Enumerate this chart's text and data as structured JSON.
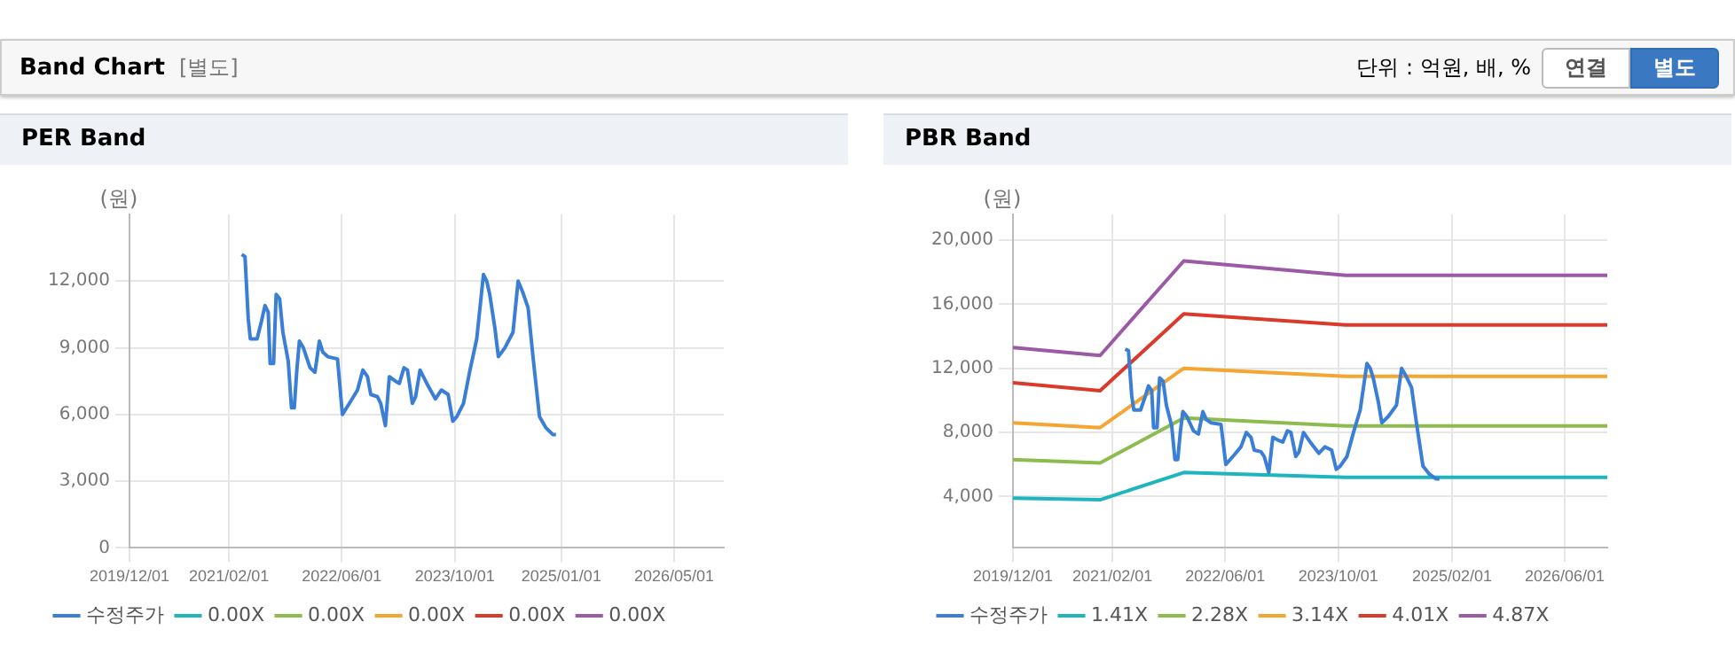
{
  "chart_data": [
    {
      "type": "line",
      "title": "PER Band",
      "ylabel": "(원)",
      "annotations": [
        "Band Chart",
        "[별도]",
        "단위 : 억원, 배, %",
        "연결",
        "별도"
      ],
      "xlim": [
        "2019-12-01",
        "2026-12-01"
      ],
      "xticks": [
        {
          "value": "2019-12-01",
          "label": "2019/12/01"
        },
        {
          "value": "2021-02-01",
          "label": "2021/02/01"
        },
        {
          "value": "2022-06-01",
          "label": "2022/06/01"
        },
        {
          "value": "2023-10-01",
          "label": "2023/10/01"
        },
        {
          "value": "2025-01-01",
          "label": "2025/01/01"
        },
        {
          "value": "2026-05-01",
          "label": "2026/05/01"
        }
      ],
      "ylim": [
        0,
        15000
      ],
      "yticks": [
        {
          "value": 0,
          "label": "0"
        },
        {
          "value": 3000,
          "label": "3,000"
        },
        {
          "value": 6000,
          "label": "6,000"
        },
        {
          "value": 9000,
          "label": "9,000"
        },
        {
          "value": 12000,
          "label": "12,000"
        }
      ],
      "grid": true,
      "legend": "bottom",
      "marker": "none",
      "series": [
        {
          "name": "수정주가",
          "color": "#3a7fd5",
          "x": [
            "2021-03-28",
            "2021-04-11",
            "2021-04-25",
            "2021-05-04",
            "2021-06-02",
            "2021-06-21",
            "2021-07-06",
            "2021-07-20",
            "2021-07-28",
            "2021-08-12",
            "2021-08-23",
            "2021-09-07",
            "2021-09-21",
            "2021-10-14",
            "2021-10-28",
            "2021-11-09",
            "2021-11-20",
            "2021-12-01",
            "2021-12-18",
            "2022-01-16",
            "2022-02-06",
            "2022-02-25",
            "2022-03-12",
            "2022-04-02",
            "2022-05-14",
            "2022-06-04",
            "2022-07-10",
            "2022-08-08",
            "2022-08-31",
            "2022-09-20",
            "2022-10-04",
            "2022-11-02",
            "2022-11-16",
            "2022-12-06",
            "2022-12-23",
            "2023-01-18",
            "2023-02-04",
            "2023-02-24",
            "2023-03-11",
            "2023-04-01",
            "2023-04-15",
            "2023-05-04",
            "2023-06-02",
            "2023-07-09",
            "2023-08-04",
            "2023-09-02",
            "2023-09-22",
            "2023-10-09",
            "2023-11-07",
            "2023-12-05",
            "2024-01-03",
            "2024-02-01",
            "2024-02-15",
            "2024-02-28",
            "2024-03-21",
            "2024-04-05",
            "2024-05-03",
            "2024-06-07",
            "2024-06-29",
            "2024-07-19",
            "2024-08-11",
            "2024-09-01",
            "2024-09-29",
            "2024-10-27",
            "2024-11-25",
            "2024-12-09"
          ],
          "values": [
            13200,
            13100,
            10300,
            9400,
            9400,
            10200,
            10900,
            10600,
            8300,
            8300,
            11400,
            11200,
            9700,
            8400,
            6300,
            6300,
            8000,
            9300,
            9000,
            8100,
            7900,
            9300,
            8800,
            8600,
            8500,
            6000,
            6600,
            7100,
            8000,
            7700,
            6900,
            6800,
            6500,
            5500,
            7700,
            7500,
            7400,
            8100,
            8000,
            6500,
            6800,
            8000,
            7400,
            6700,
            7100,
            6900,
            5700,
            5900,
            6500,
            8000,
            9400,
            12300,
            12000,
            11400,
            9900,
            8600,
            9000,
            9700,
            12000,
            11500,
            10800,
            8600,
            5900,
            5400,
            5100,
            5100
          ]
        },
        {
          "name": "0.00X",
          "color": "#1fb5bf"
        },
        {
          "name": "0.00X",
          "color": "#8dbb4f"
        },
        {
          "name": "0.00X",
          "color": "#f5a531"
        },
        {
          "name": "0.00X",
          "color": "#d93a2b"
        },
        {
          "name": "0.00X",
          "color": "#9b59a6"
        }
      ]
    },
    {
      "type": "line",
      "title": "PBR Band",
      "ylabel": "(원)",
      "xlim": [
        "2019-12-01",
        "2026-12-01"
      ],
      "xticks": [
        {
          "value": "2019-12-01",
          "label": "2019/12/01"
        },
        {
          "value": "2021-02-01",
          "label": "2021/02/01"
        },
        {
          "value": "2022-06-01",
          "label": "2022/06/01"
        },
        {
          "value": "2023-10-01",
          "label": "2023/10/01"
        },
        {
          "value": "2025-02-01",
          "label": "2025/02/01"
        },
        {
          "value": "2026-06-01",
          "label": "2026/06/01"
        }
      ],
      "ylim": [
        800,
        21600
      ],
      "yticks": [
        {
          "value": 4000,
          "label": "4,000"
        },
        {
          "value": 8000,
          "label": "8,000"
        },
        {
          "value": 12000,
          "label": "12,000"
        },
        {
          "value": 16000,
          "label": "16,000"
        },
        {
          "value": 20000,
          "label": "20,000"
        }
      ],
      "grid": true,
      "legend": "bottom",
      "marker": "none",
      "series": [
        {
          "name": "수정주가",
          "color": "#3a7fd5",
          "x": [
            "2021-03-28",
            "2021-04-11",
            "2021-04-25",
            "2021-05-04",
            "2021-06-02",
            "2021-06-21",
            "2021-07-06",
            "2021-07-20",
            "2021-07-28",
            "2021-08-12",
            "2021-08-23",
            "2021-09-07",
            "2021-09-21",
            "2021-10-14",
            "2021-10-28",
            "2021-11-09",
            "2021-11-20",
            "2021-12-01",
            "2021-12-18",
            "2022-01-16",
            "2022-02-06",
            "2022-02-25",
            "2022-03-12",
            "2022-04-02",
            "2022-05-14",
            "2022-06-04",
            "2022-07-10",
            "2022-08-08",
            "2022-08-31",
            "2022-09-20",
            "2022-10-04",
            "2022-11-02",
            "2022-11-16",
            "2022-12-06",
            "2022-12-23",
            "2023-01-18",
            "2023-02-04",
            "2023-02-24",
            "2023-03-11",
            "2023-04-01",
            "2023-04-15",
            "2023-05-04",
            "2023-06-02",
            "2023-07-09",
            "2023-08-04",
            "2023-09-02",
            "2023-09-22",
            "2023-10-09",
            "2023-11-07",
            "2023-12-05",
            "2024-01-03",
            "2024-02-01",
            "2024-02-15",
            "2024-02-28",
            "2024-03-21",
            "2024-04-05",
            "2024-05-03",
            "2024-06-07",
            "2024-06-29",
            "2024-07-19",
            "2024-08-11",
            "2024-09-01",
            "2024-09-29",
            "2024-10-27",
            "2024-11-25",
            "2024-12-09"
          ],
          "values": [
            13200,
            13100,
            10300,
            9400,
            9400,
            10200,
            10900,
            10600,
            8300,
            8300,
            11400,
            11200,
            9700,
            8400,
            6300,
            6300,
            8000,
            9300,
            9000,
            8100,
            7900,
            9300,
            8800,
            8600,
            8500,
            6000,
            6600,
            7100,
            8000,
            7700,
            6900,
            6800,
            6500,
            5500,
            7700,
            7500,
            7400,
            8100,
            8000,
            6500,
            6800,
            8000,
            7400,
            6700,
            7100,
            6900,
            5700,
            5900,
            6500,
            8000,
            9400,
            12300,
            12000,
            11400,
            9900,
            8600,
            9000,
            9700,
            12000,
            11500,
            10800,
            8600,
            5900,
            5400,
            5100,
            5100
          ]
        },
        {
          "name": "1.41X",
          "color": "#1fb5bf",
          "x": [
            "2019-12-01",
            "2020-12-10",
            "2021-12-05",
            "2023-11-01",
            "2026-12-01"
          ],
          "values": [
            3900,
            3800,
            5500,
            5200,
            5200
          ]
        },
        {
          "name": "2.28X",
          "color": "#8dbb4f",
          "x": [
            "2019-12-01",
            "2020-12-10",
            "2021-12-05",
            "2023-11-01",
            "2026-12-01"
          ],
          "values": [
            6300,
            6100,
            8900,
            8400,
            8400
          ]
        },
        {
          "name": "3.14X",
          "color": "#f5a531",
          "x": [
            "2019-12-01",
            "2020-12-10",
            "2021-12-05",
            "2023-11-01",
            "2026-12-01"
          ],
          "values": [
            8600,
            8300,
            12000,
            11500,
            11500
          ]
        },
        {
          "name": "4.01X",
          "color": "#d93a2b",
          "x": [
            "2019-12-01",
            "2020-12-10",
            "2021-12-05",
            "2023-11-01",
            "2026-12-01"
          ],
          "values": [
            11100,
            10600,
            15400,
            14700,
            14700
          ]
        },
        {
          "name": "4.87X",
          "color": "#9b59a6",
          "x": [
            "2019-12-01",
            "2020-12-10",
            "2021-12-05",
            "2023-11-01",
            "2026-12-01"
          ],
          "values": [
            13300,
            12800,
            18700,
            17800,
            17800
          ]
        }
      ]
    }
  ]
}
